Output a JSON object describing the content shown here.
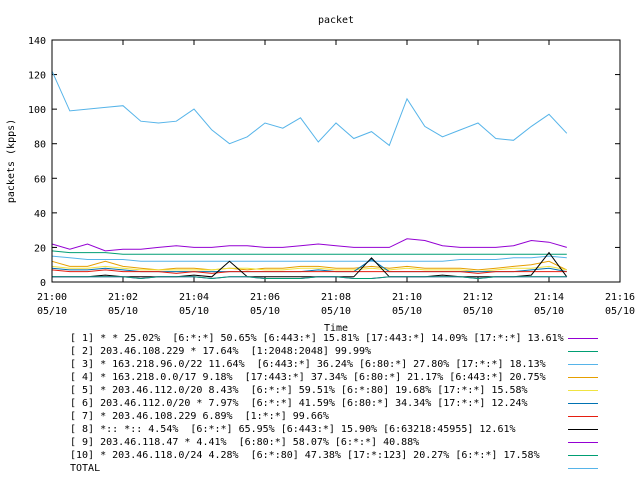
{
  "chart_data": {
    "type": "line",
    "title": "packet",
    "xlabel": "Time",
    "ylabel": "packets (kpps)",
    "ylim": [
      0,
      140
    ],
    "yticks": [
      0,
      20,
      40,
      60,
      80,
      100,
      120,
      140
    ],
    "grid": false,
    "legend_placement": "bottom",
    "xticks": [
      {
        "time": "21:00",
        "date": "05/10"
      },
      {
        "time": "21:02",
        "date": "05/10"
      },
      {
        "time": "21:04",
        "date": "05/10"
      },
      {
        "time": "21:06",
        "date": "05/10"
      },
      {
        "time": "21:08",
        "date": "05/10"
      },
      {
        "time": "21:10",
        "date": "05/10"
      },
      {
        "time": "21:12",
        "date": "05/10"
      },
      {
        "time": "21:14",
        "date": "05/10"
      },
      {
        "time": "21:16",
        "date": "05/10"
      }
    ],
    "xlim_minutes": [
      0,
      16
    ],
    "x": [
      0.0,
      0.5,
      1.0,
      1.5,
      2.0,
      2.5,
      3.0,
      3.5,
      4.0,
      4.5,
      5.0,
      5.5,
      6.0,
      6.5,
      7.0,
      7.5,
      8.0,
      8.5,
      9.0,
      9.5,
      10.0,
      10.5,
      11.0,
      11.5,
      12.0,
      12.5,
      13.0,
      13.5,
      14.0,
      14.5
    ],
    "series": [
      {
        "name": "[ 1] * * 25.02%  [6:*:*] 50.65% [6:443:*] 15.81% [17:443:*] 14.09% [17:*:*] 13.61%",
        "color": "#9400d3",
        "values": [
          22,
          19,
          22,
          18,
          19,
          19,
          20,
          21,
          20,
          20,
          21,
          21,
          20,
          20,
          21,
          22,
          21,
          20,
          20,
          20,
          25,
          24,
          21,
          20,
          20,
          20,
          21,
          24,
          23,
          20
        ]
      },
      {
        "name": "[ 2] 203.46.108.229 * 17.64%  [1:2048:2048] 99.99%",
        "color": "#009e73",
        "values": [
          18,
          17,
          17,
          17,
          16,
          16,
          16,
          16,
          16,
          16,
          16,
          16,
          16,
          16,
          16,
          16,
          16,
          16,
          16,
          16,
          16,
          16,
          16,
          16,
          16,
          16,
          16,
          16,
          16,
          16
        ]
      },
      {
        "name": "[ 3] * 163.218.96.0/22 11.64%  [6:443:*] 36.24% [6:80:*] 27.80% [17:*:*] 18.13%",
        "color": "#56b4e9",
        "values": [
          15,
          14,
          13,
          13,
          13,
          12,
          12,
          12,
          12,
          12,
          12,
          12,
          12,
          12,
          12,
          12,
          12,
          12,
          12,
          12,
          12,
          12,
          12,
          13,
          13,
          13,
          14,
          14,
          15,
          14
        ]
      },
      {
        "name": "[ 4] * 163.218.0.0/17 9.18%  [17:443:*] 37.34% [6:80:*] 21.17% [6:443:*] 20.75%",
        "color": "#e69f00",
        "values": [
          12,
          9,
          9,
          12,
          9,
          8,
          7,
          8,
          8,
          7,
          8,
          7,
          8,
          8,
          9,
          9,
          8,
          8,
          9,
          8,
          9,
          8,
          8,
          8,
          7,
          8,
          9,
          10,
          12,
          7
        ]
      },
      {
        "name": "[ 5] * 203.46.112.0/20 8.43%  [6:*:*] 59.51% [6:*:80] 19.68% [17:*:*] 15.58%",
        "color": "#f0e442",
        "values": [
          9,
          8,
          8,
          9,
          8,
          7,
          7,
          7,
          7,
          7,
          8,
          8,
          7,
          7,
          8,
          8,
          7,
          7,
          8,
          7,
          8,
          7,
          7,
          7,
          6,
          7,
          8,
          8,
          9,
          7
        ]
      },
      {
        "name": "[ 6] 203.46.112.0/20 * 7.97%  [6:*:*] 41.59% [6:80:*] 34.34% [17:*:*] 12.24%",
        "color": "#0072b2",
        "values": [
          8,
          7,
          7,
          8,
          7,
          6,
          6,
          6,
          6,
          6,
          6,
          6,
          6,
          6,
          6,
          7,
          6,
          6,
          13,
          6,
          6,
          6,
          6,
          6,
          6,
          6,
          6,
          7,
          8,
          6
        ]
      },
      {
        "name": "[ 7] * 203.46.108.229 6.89%  [1:*:*] 99.66%",
        "color": "#e51e10",
        "values": [
          7,
          6,
          6,
          7,
          6,
          6,
          6,
          5,
          6,
          5,
          6,
          6,
          6,
          6,
          6,
          6,
          6,
          6,
          6,
          6,
          6,
          6,
          6,
          6,
          5,
          6,
          6,
          6,
          6,
          6
        ]
      },
      {
        "name": "[ 8] *:: *:: 4.54%  [6:*:*] 65.95% [6:443:*] 15.90% [6:63218:45955] 12.61%",
        "color": "#000000",
        "values": [
          3,
          3,
          3,
          4,
          3,
          3,
          3,
          3,
          4,
          3,
          12,
          3,
          3,
          3,
          3,
          3,
          3,
          3,
          14,
          3,
          3,
          3,
          4,
          3,
          3,
          3,
          3,
          4,
          17,
          3
        ]
      },
      {
        "name": "[ 9] 203.46.118.47 * 4.41%  [6:80:*] 58.07% [6:*:*] 40.88%",
        "color": "#9400d3",
        "values": [
          3,
          3,
          3,
          3,
          3,
          2,
          3,
          3,
          3,
          2,
          3,
          3,
          2,
          2,
          2,
          3,
          3,
          2,
          2,
          3,
          3,
          3,
          3,
          3,
          2,
          3,
          3,
          3,
          3,
          3
        ]
      },
      {
        "name": "[10] * 203.46.118.0/24 4.28%  [6:*:80] 47.38% [17:*:123] 20.27% [6:*:*] 17.58%",
        "color": "#009e73",
        "values": [
          3,
          3,
          3,
          3,
          3,
          2,
          3,
          3,
          3,
          2,
          3,
          3,
          2,
          2,
          2,
          3,
          3,
          2,
          2,
          3,
          3,
          3,
          3,
          3,
          2,
          3,
          3,
          3,
          3,
          3
        ]
      },
      {
        "name": "TOTAL",
        "color": "#56b4e9",
        "values": [
          122,
          99,
          100,
          101,
          102,
          93,
          92,
          93,
          100,
          88,
          80,
          84,
          92,
          89,
          95,
          81,
          92,
          83,
          87,
          79,
          106,
          90,
          84,
          88,
          92,
          83,
          82,
          90,
          97,
          86
        ]
      }
    ]
  }
}
